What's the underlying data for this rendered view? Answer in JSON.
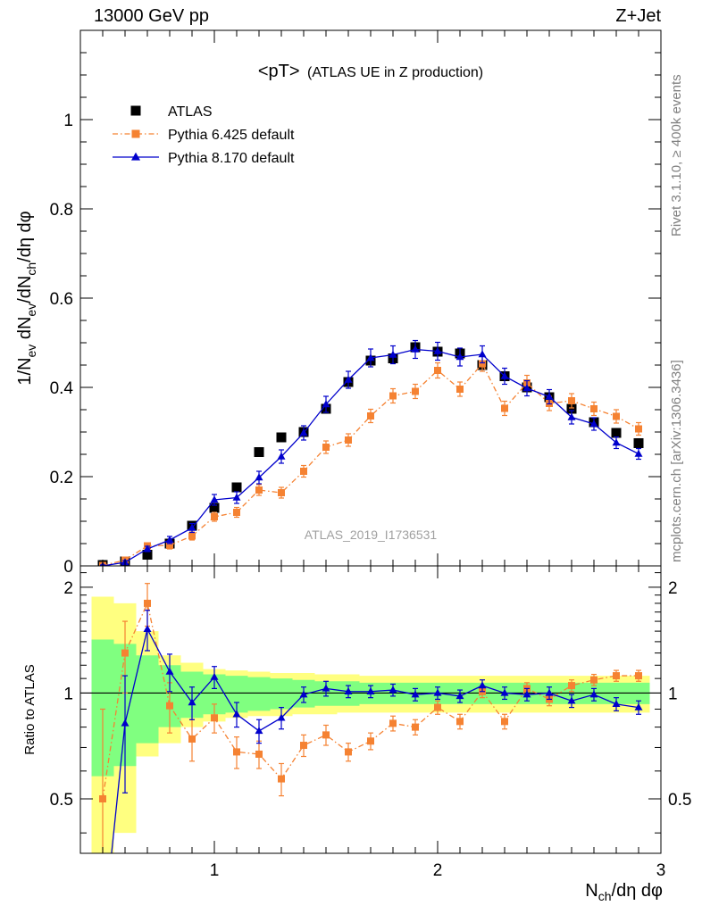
{
  "header": {
    "left": "13000 GeV pp",
    "right": "Z+Jet"
  },
  "side": {
    "rivet": "Rivet 3.1.10, ≥ 400k events",
    "mcplots": "mcplots.cern.ch [arXiv:1306.3436]"
  },
  "chart_data": {
    "type": "scatter",
    "title": "<pT> (ATLAS UE in Z production)",
    "title_main": "<pT>",
    "title_sub": "(ATLAS UE in Z production)",
    "watermark": "ATLAS_2019_I1736531",
    "xlabel": "N_ch/dη dφ",
    "xlabel_parts": {
      "base": "N",
      "sub": "ch",
      "rest": "/dη dφ"
    },
    "ylabel": "1/N_ev dN_ev/dN_ch/dη dφ",
    "ylabel_parts": {
      "p1": "1/N",
      "s1": "ev",
      "p2": " dN",
      "s2": "ev",
      "p3": "/dN",
      "s3": "ch",
      "p4": "/dη dφ"
    },
    "xlim": [
      0.4,
      3.0
    ],
    "ylim": [
      0,
      1.2
    ],
    "xticks": [
      1,
      2,
      3
    ],
    "xtick_labels": [
      "1",
      "2",
      "3"
    ],
    "yticks": [
      0,
      0.2,
      0.4,
      0.6,
      0.8,
      1
    ],
    "ytick_labels": [
      "0",
      "0.2",
      "0.4",
      "0.6",
      "0.8",
      "1"
    ],
    "legend_position": "top-left",
    "x": [
      0.5,
      0.6,
      0.7,
      0.8,
      0.9,
      1.0,
      1.1,
      1.2,
      1.3,
      1.4,
      1.5,
      1.6,
      1.7,
      1.8,
      1.9,
      2.0,
      2.1,
      2.2,
      2.3,
      2.4,
      2.5,
      2.6,
      2.7,
      2.8,
      2.9
    ],
    "series": [
      {
        "name": "ATLAS",
        "style": "data",
        "color": "#000000",
        "marker": "square",
        "values": [
          0.002,
          0.01,
          0.025,
          0.05,
          0.09,
          0.13,
          0.176,
          0.255,
          0.288,
          0.3,
          0.352,
          0.412,
          0.46,
          0.465,
          0.49,
          0.48,
          0.476,
          0.45,
          0.425,
          0.4,
          0.378,
          0.352,
          0.322,
          0.298,
          0.275
        ],
        "errors": [
          0,
          0,
          0,
          0,
          0,
          0,
          0,
          0,
          0,
          0,
          0,
          0,
          0,
          0,
          0,
          0,
          0,
          0,
          0,
          0,
          0,
          0,
          0,
          0,
          0
        ]
      },
      {
        "name": "Pythia 6.425 default",
        "style": "dashdot",
        "color": "#f58232",
        "marker": "square",
        "values": [
          0.001,
          0.013,
          0.045,
          0.046,
          0.067,
          0.11,
          0.12,
          0.17,
          0.164,
          0.212,
          0.266,
          0.282,
          0.336,
          0.381,
          0.391,
          0.438,
          0.396,
          0.453,
          0.353,
          0.41,
          0.364,
          0.37,
          0.352,
          0.335,
          0.307
        ],
        "errors": [
          0.002,
          0.004,
          0.006,
          0.008,
          0.009,
          0.01,
          0.011,
          0.012,
          0.012,
          0.013,
          0.014,
          0.014,
          0.015,
          0.016,
          0.016,
          0.017,
          0.016,
          0.017,
          0.016,
          0.017,
          0.016,
          0.016,
          0.015,
          0.015,
          0.014
        ],
        "ratio": [
          0.5,
          1.3,
          1.8,
          0.92,
          0.74,
          0.85,
          0.68,
          0.67,
          0.57,
          0.71,
          0.76,
          0.68,
          0.73,
          0.82,
          0.8,
          0.91,
          0.83,
          1.01,
          0.83,
          1.03,
          0.96,
          1.05,
          1.09,
          1.12,
          1.12
        ],
        "ratio_errors": [
          0.4,
          0.3,
          0.25,
          0.15,
          0.1,
          0.08,
          0.07,
          0.06,
          0.06,
          0.05,
          0.05,
          0.04,
          0.04,
          0.04,
          0.04,
          0.04,
          0.04,
          0.04,
          0.04,
          0.04,
          0.04,
          0.04,
          0.04,
          0.04,
          0.04
        ]
      },
      {
        "name": "Pythia 8.170 default",
        "style": "solid",
        "color": "#0000cc",
        "marker": "triangle",
        "values": [
          0.0,
          0.008,
          0.038,
          0.058,
          0.085,
          0.148,
          0.153,
          0.198,
          0.245,
          0.298,
          0.362,
          0.417,
          0.466,
          0.473,
          0.485,
          0.481,
          0.468,
          0.474,
          0.425,
          0.398,
          0.379,
          0.333,
          0.318,
          0.276,
          0.251
        ],
        "errors": [
          0.002,
          0.004,
          0.006,
          0.008,
          0.01,
          0.012,
          0.013,
          0.014,
          0.015,
          0.016,
          0.018,
          0.019,
          0.02,
          0.02,
          0.02,
          0.02,
          0.02,
          0.019,
          0.018,
          0.017,
          0.016,
          0.015,
          0.014,
          0.013,
          0.012
        ],
        "ratio": [
          0.0,
          0.82,
          1.52,
          1.15,
          0.94,
          1.11,
          0.87,
          0.78,
          0.85,
          0.99,
          1.03,
          1.01,
          1.01,
          1.02,
          0.99,
          1.0,
          0.98,
          1.05,
          1.0,
          0.99,
          1.0,
          0.95,
          0.99,
          0.93,
          0.91
        ],
        "ratio_errors": [
          0.4,
          0.3,
          0.2,
          0.14,
          0.1,
          0.08,
          0.07,
          0.06,
          0.06,
          0.05,
          0.05,
          0.04,
          0.04,
          0.04,
          0.04,
          0.04,
          0.04,
          0.04,
          0.04,
          0.04,
          0.04,
          0.04,
          0.04,
          0.04,
          0.04
        ]
      }
    ],
    "ratio_panel": {
      "ylabel": "Ratio to ATLAS",
      "ylim": [
        0.35,
        2.3
      ],
      "yticks": [
        0.5,
        1,
        2
      ],
      "ytick_labels": [
        "0.5",
        "1",
        "2"
      ],
      "reference_line": 1,
      "band_edges": [
        0.45,
        0.55,
        0.65,
        0.75,
        0.85,
        0.95,
        1.05,
        1.15,
        1.25,
        1.35,
        1.45,
        1.55,
        1.65,
        1.75,
        1.85,
        1.95,
        2.05,
        2.15,
        2.25,
        2.35,
        2.45,
        2.55,
        2.65,
        2.75,
        2.85,
        2.95
      ],
      "inner_band": {
        "color": "#80ff80",
        "lower": [
          0.58,
          0.62,
          0.72,
          0.8,
          0.85,
          0.87,
          0.88,
          0.89,
          0.9,
          0.91,
          0.92,
          0.92,
          0.93,
          0.93,
          0.93,
          0.93,
          0.93,
          0.93,
          0.93,
          0.93,
          0.93,
          0.93,
          0.93,
          0.93,
          0.93
        ],
        "upper": [
          1.42,
          1.38,
          1.28,
          1.2,
          1.15,
          1.13,
          1.12,
          1.11,
          1.1,
          1.09,
          1.08,
          1.08,
          1.07,
          1.07,
          1.07,
          1.07,
          1.07,
          1.07,
          1.07,
          1.07,
          1.07,
          1.07,
          1.07,
          1.07,
          1.07
        ]
      },
      "outer_band": {
        "color": "#ffff80",
        "lower": [
          0.32,
          0.4,
          0.66,
          0.72,
          0.8,
          0.83,
          0.85,
          0.86,
          0.86,
          0.87,
          0.87,
          0.88,
          0.88,
          0.88,
          0.88,
          0.88,
          0.88,
          0.88,
          0.88,
          0.88,
          0.88,
          0.88,
          0.88,
          0.88,
          0.88
        ],
        "upper": [
          1.88,
          1.8,
          1.5,
          1.28,
          1.22,
          1.17,
          1.16,
          1.15,
          1.14,
          1.14,
          1.13,
          1.13,
          1.12,
          1.12,
          1.12,
          1.12,
          1.12,
          1.12,
          1.12,
          1.12,
          1.12,
          1.12,
          1.12,
          1.12,
          1.12
        ]
      }
    }
  }
}
